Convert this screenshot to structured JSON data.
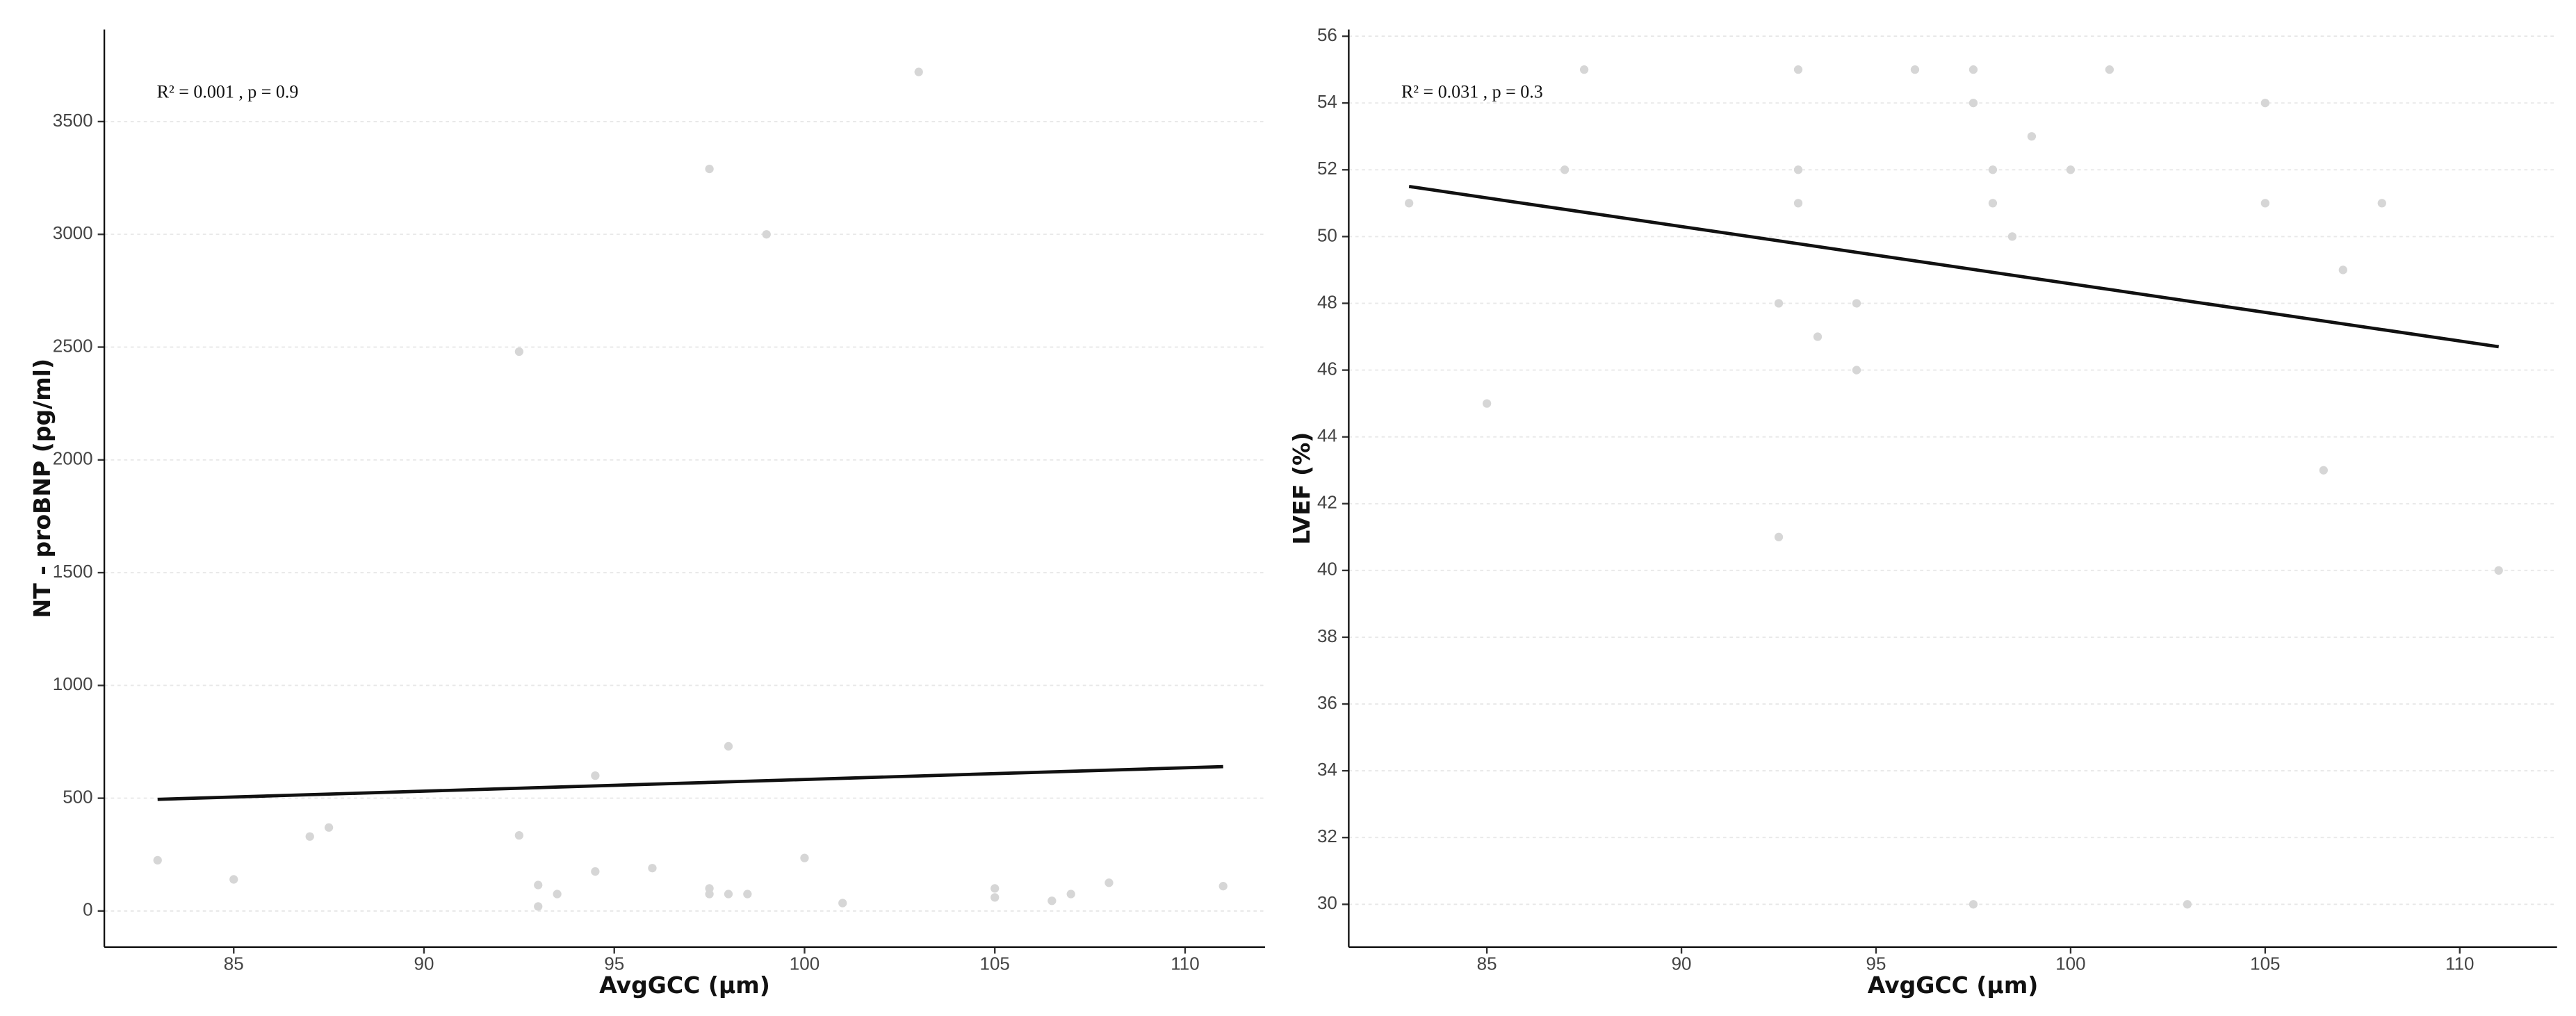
{
  "chart_data": [
    {
      "type": "scatter",
      "annotation": "R² = 0.001 , p = 0.9",
      "x_label": "AvgGCC (μm)",
      "y_label": "NT - proBNP (pg/ml)",
      "x": [
        83,
        85,
        87,
        87.5,
        92.5,
        92.5,
        93,
        93,
        93.5,
        94.5,
        94.5,
        96,
        97.5,
        97.5,
        97.5,
        98,
        98,
        98.5,
        99,
        100,
        101,
        103,
        105,
        105,
        106.5,
        107,
        108,
        111
      ],
      "y": [
        225,
        140,
        330,
        370,
        2480,
        335,
        115,
        20,
        75,
        175,
        600,
        190,
        3290,
        100,
        75,
        730,
        75,
        75,
        3000,
        235,
        35,
        3720,
        100,
        60,
        45,
        75,
        125,
        110
      ],
      "color": "#d6d6d6",
      "fit": {
        "x": [
          83,
          111
        ],
        "y": [
          495,
          640
        ],
        "color": "#111111"
      },
      "xlim": [
        81.6,
        112.1
      ],
      "ylim": [
        -160,
        3908
      ],
      "xticks": [
        85,
        90,
        95,
        100,
        105,
        110
      ],
      "yticks": [
        0,
        500,
        1000,
        1500,
        2000,
        2500,
        3000,
        3500
      ],
      "grid": true
    },
    {
      "type": "scatter",
      "annotation": "R² = 0.031 , p = 0.3",
      "x_label": "AvgGCC (μm)",
      "y_label": "LVEF (%)",
      "x": [
        83,
        85,
        87,
        87.5,
        92.5,
        92.5,
        93,
        93,
        93,
        93.5,
        94.5,
        94.5,
        96,
        97.5,
        97.5,
        97.5,
        98,
        98,
        98.5,
        99,
        100,
        101,
        103,
        105,
        105,
        106.5,
        107,
        108,
        111
      ],
      "y": [
        51,
        45,
        52,
        55,
        48,
        41,
        55,
        52,
        51,
        47,
        48,
        46,
        55,
        55,
        54,
        30,
        52,
        51,
        50,
        53,
        52,
        55,
        30,
        54,
        51,
        43,
        49,
        51,
        40
      ],
      "color": "#d6d6d6",
      "fit": {
        "x": [
          83,
          111
        ],
        "y": [
          51.5,
          46.7
        ],
        "color": "#111111"
      },
      "xlim": [
        81.45,
        112.5
      ],
      "ylim": [
        28.72,
        56.2
      ],
      "xticks": [
        85,
        90,
        95,
        100,
        105,
        110
      ],
      "yticks": [
        30,
        32,
        34,
        36,
        38,
        40,
        42,
        44,
        46,
        48,
        50,
        52,
        54,
        56
      ],
      "grid": true
    }
  ]
}
